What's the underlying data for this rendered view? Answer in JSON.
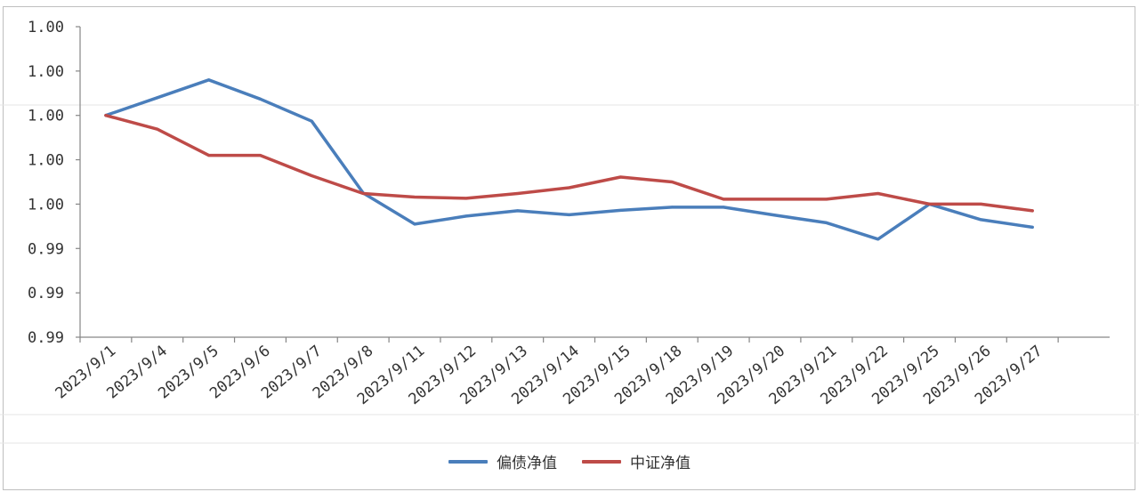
{
  "colors": {
    "series1": "#4a7ebb",
    "series2": "#be4b48",
    "axis": "#868686",
    "grid_faint": "#e6e6e6"
  },
  "chart_data": {
    "type": "line",
    "title": "",
    "xlabel": "",
    "ylabel": "",
    "categories": [
      "2023/9/1",
      "2023/9/4",
      "2023/9/5",
      "2023/9/6",
      "2023/9/7",
      "2023/9/8",
      "2023/9/11",
      "2023/9/12",
      "2023/9/13",
      "2023/9/14",
      "2023/9/15",
      "2023/9/18",
      "2023/9/19",
      "2023/9/20",
      "2023/9/21",
      "2023/9/22",
      "2023/9/25",
      "2023/9/26",
      "2023/9/27"
    ],
    "y_tick_labels": [
      "1.00",
      "1.00",
      "1.00",
      "1.00",
      "1.00",
      "0.99",
      "0.99",
      "0.99"
    ],
    "y_tick_values": [
      1.004,
      1.003,
      1.002,
      1.001,
      1.0,
      0.999,
      0.998,
      0.997
    ],
    "ylim": [
      0.997,
      1.004
    ],
    "grid": false,
    "legend_position": "bottom",
    "series": [
      {
        "name": "偏债净值",
        "color_key": "series1",
        "values": [
          1.002,
          1.0024,
          1.0028,
          1.00237,
          1.00187,
          1.00025,
          0.99955,
          0.99973,
          0.99985,
          0.99976,
          0.99986,
          0.99993,
          0.99993,
          0.99975,
          0.99958,
          0.99921,
          1.0,
          0.99965,
          0.99948
        ]
      },
      {
        "name": "中证净值",
        "color_key": "series2",
        "values": [
          1.002,
          1.00169,
          1.0011,
          1.0011,
          1.00064,
          1.00024,
          1.00016,
          1.00013,
          1.00024,
          1.00037,
          1.00061,
          1.0005,
          1.00011,
          1.00011,
          1.00011,
          1.00024,
          1.0,
          1.0,
          0.99985
        ]
      }
    ]
  }
}
